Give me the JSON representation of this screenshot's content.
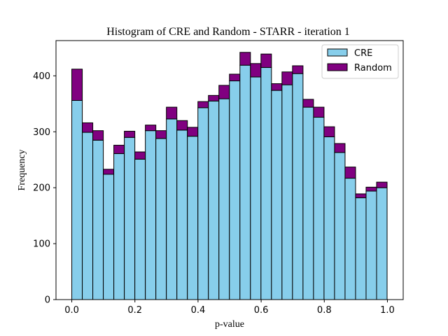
{
  "chart_data": {
    "type": "bar",
    "title": "Histogram of CRE and Random - STARR - iteration 1",
    "xlabel": "p-value",
    "ylabel": "Frequency",
    "xlim": [
      -0.05,
      1.05
    ],
    "ylim": [
      0,
      463
    ],
    "x_ticks": [
      "0.0",
      "0.2",
      "0.4",
      "0.6",
      "0.8",
      "1.0"
    ],
    "y_ticks": [
      "0",
      "100",
      "200",
      "300",
      "400"
    ],
    "bin_start": 0.0,
    "bin_width": 0.0333,
    "stacked": true,
    "legend_position": "top-right",
    "series": [
      {
        "name": "CRE",
        "color": "#87CEEB",
        "values": [
          356,
          299,
          285,
          224,
          261,
          290,
          251,
          302,
          288,
          323,
          303,
          292,
          343,
          355,
          359,
          391,
          419,
          398,
          415,
          374,
          384,
          404,
          344,
          326,
          291,
          263,
          217,
          182,
          194,
          200
        ]
      },
      {
        "name": "Random",
        "color": "#800080",
        "values": [
          56,
          17,
          17,
          9,
          15,
          11,
          13,
          10,
          14,
          21,
          17,
          16,
          11,
          10,
          24,
          12,
          23,
          24,
          24,
          12,
          23,
          14,
          14,
          18,
          18,
          16,
          20,
          7,
          7,
          10
        ]
      }
    ]
  }
}
